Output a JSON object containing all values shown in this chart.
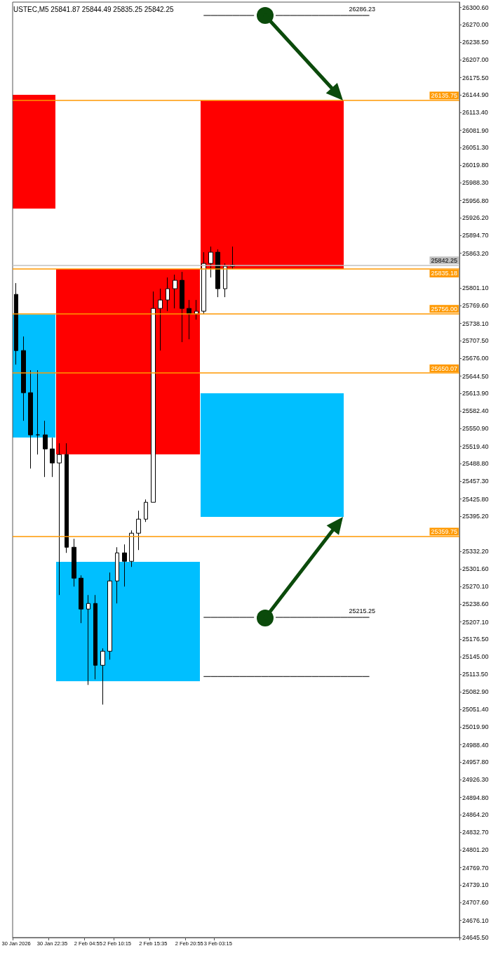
{
  "chart_data": {
    "type": "candlestick",
    "title": "USTEC,M5 25841.87 25844.49 25835.25 25842.25",
    "categories": [
      "30 Jan 2026",
      null,
      null,
      null,
      null,
      "30 Jan 22:35",
      null,
      null,
      null,
      null,
      "2 Feb 04:55",
      null,
      null,
      null,
      "2 Feb 10:15",
      null,
      null,
      null,
      null,
      "2 Feb 15:35",
      null,
      null,
      null,
      null,
      "2 Feb 20:55",
      null,
      null,
      null,
      "3 Feb 03:15",
      null,
      null,
      null,
      null,
      null,
      null,
      null,
      null,
      null,
      null,
      null,
      null,
      null,
      null,
      null,
      null,
      null,
      null,
      null,
      null,
      null,
      null,
      null,
      null,
      null,
      null,
      null,
      null,
      null,
      null,
      null,
      null,
      null
    ],
    "series": [
      {
        "type": "line",
        "color": "#000000",
        "values": [
          null,
          null,
          null,
          null,
          null,
          null,
          null,
          null,
          null,
          null,
          null,
          null,
          null,
          null,
          null,
          null,
          null,
          null,
          null,
          null,
          null,
          null,
          null,
          null,
          null,
          null,
          26286.23,
          26286.23,
          26286.23,
          26286.23,
          26286.23,
          26286.23,
          26286.23,
          26286.23,
          null,
          null,
          26286.23,
          26286.23,
          26286.23,
          26286.23,
          26286.23,
          26286.23,
          26286.23,
          26286.23,
          26286.23,
          26286.23,
          26286.23,
          26286.23,
          26286.23,
          26286.23,
          null,
          null,
          null,
          null,
          null,
          null,
          null,
          null,
          null,
          null,
          null,
          null
        ],
        "value_labels": [
          null,
          null,
          null,
          null,
          null,
          null,
          null,
          null,
          null,
          null,
          null,
          null,
          null,
          null,
          null,
          null,
          null,
          null,
          null,
          null,
          null,
          null,
          null,
          null,
          null,
          null,
          null,
          null,
          null,
          null,
          null,
          null,
          null,
          null,
          null,
          null,
          null,
          null,
          null,
          null,
          null,
          null,
          null,
          null,
          null,
          null,
          null,
          null,
          "26286.23",
          null,
          null,
          null,
          null,
          null,
          null,
          null,
          null,
          null,
          null,
          null,
          null,
          null
        ]
      },
      {
        "type": "line",
        "color": "#000000",
        "values": [
          null,
          null,
          null,
          null,
          null,
          null,
          null,
          null,
          null,
          null,
          null,
          null,
          null,
          null,
          null,
          null,
          null,
          null,
          null,
          null,
          null,
          null,
          null,
          null,
          null,
          null,
          25215.25,
          25215.25,
          25215.25,
          25215.25,
          25215.25,
          25215.25,
          25215.25,
          25215.25,
          null,
          null,
          25215.25,
          25215.25,
          25215.25,
          25215.25,
          25215.25,
          25215.25,
          25215.25,
          25215.25,
          25215.25,
          25215.25,
          25215.25,
          25215.25,
          25215.25,
          25215.25,
          null,
          null,
          null,
          null,
          null,
          null,
          null,
          null,
          null,
          null,
          null,
          null
        ],
        "value_labels": [
          null,
          null,
          null,
          null,
          null,
          null,
          null,
          null,
          null,
          null,
          null,
          null,
          null,
          null,
          null,
          null,
          null,
          null,
          null,
          null,
          null,
          null,
          null,
          null,
          null,
          null,
          null,
          null,
          null,
          null,
          null,
          null,
          null,
          null,
          null,
          null,
          null,
          null,
          null,
          null,
          null,
          null,
          null,
          null,
          null,
          null,
          null,
          null,
          "25215.25",
          null,
          null,
          null,
          null,
          null,
          null,
          null,
          null,
          null,
          null,
          null,
          null,
          null
        ]
      },
      {
        "type": "line",
        "color": "#000000",
        "values": [
          null,
          null,
          null,
          null,
          null,
          null,
          null,
          null,
          null,
          null,
          null,
          null,
          null,
          null,
          null,
          null,
          null,
          null,
          null,
          null,
          null,
          null,
          null,
          null,
          null,
          null,
          25110,
          25110,
          25110,
          25110,
          25110,
          25110,
          25110,
          25110,
          25110,
          25110,
          25110,
          25110,
          25110,
          25110,
          25110,
          25110,
          25110,
          25110,
          25110,
          25110,
          25110,
          25110,
          25110,
          25110,
          null,
          null,
          null,
          null,
          null,
          null,
          null,
          null,
          null,
          null,
          null,
          null
        ]
      }
    ],
    "color": "#000000",
    "ohlc": [
      [
        25790,
        25810,
        25665,
        25690
      ],
      [
        25690,
        25715,
        25565,
        25615
      ],
      [
        25615,
        25655,
        25480,
        25540
      ],
      [
        25540,
        25655,
        25505,
        25540
      ],
      [
        25540,
        25565,
        25465,
        25515
      ],
      [
        25515,
        25535,
        25465,
        25490
      ],
      [
        25490,
        25525,
        25255,
        25505
      ],
      [
        25505,
        25525,
        25330,
        25340
      ],
      [
        25340,
        25355,
        25270,
        25285
      ],
      [
        25285,
        25290,
        25205,
        25230
      ],
      [
        25230,
        25255,
        25095,
        25240
      ],
      [
        25240,
        25255,
        25105,
        25130
      ],
      [
        25130,
        25160,
        25060,
        25155
      ],
      [
        25155,
        25295,
        25140,
        25280
      ],
      [
        25280,
        25340,
        25240,
        25330
      ],
      [
        25330,
        25345,
        25270,
        25315
      ],
      [
        25315,
        25370,
        25305,
        25365
      ],
      [
        25365,
        25405,
        25335,
        25390
      ],
      [
        25390,
        25425,
        25385,
        25420
      ],
      [
        25420,
        25795,
        25420,
        25765
      ],
      [
        25765,
        25800,
        25690,
        25780
      ],
      [
        25780,
        25820,
        25760,
        25800
      ],
      [
        25800,
        25825,
        25765,
        25815
      ],
      [
        25815,
        25830,
        25705,
        25765
      ],
      [
        25765,
        25780,
        25710,
        25755
      ],
      [
        25755,
        25780,
        25745,
        25760
      ],
      [
        25760,
        25865,
        25755,
        25845
      ],
      [
        25845,
        25875,
        25820,
        25865
      ],
      [
        25865,
        25870,
        25785,
        25800
      ],
      [
        25800,
        25845,
        25785,
        25840
      ],
      [
        25840,
        25875,
        25835,
        25842.25
      ],
      null,
      null,
      null,
      null,
      null,
      null,
      null,
      null,
      null,
      null,
      null,
      null,
      null,
      null,
      null,
      null,
      null,
      null,
      null,
      null,
      null,
      null,
      null,
      null,
      null,
      null,
      null,
      null,
      null,
      null,
      null
    ],
    "ylim": [
      24645.5,
      26310
    ],
    "yticks": [
      {
        "value": 26300.6,
        "label": "26300.60"
      },
      {
        "value": 26270,
        "label": "26270.00"
      },
      {
        "value": 26238.5,
        "label": "26238.50"
      },
      {
        "value": 26207,
        "label": "26207.00"
      },
      {
        "value": 26175.5,
        "label": "26175.50"
      },
      {
        "value": 26144.9,
        "label": "26144.90"
      },
      {
        "value": 26113.4,
        "label": "26113.40"
      },
      {
        "value": 26081.9,
        "label": "26081.90"
      },
      {
        "value": 26051.3,
        "label": "26051.30"
      },
      {
        "value": 26019.8,
        "label": "26019.80"
      },
      {
        "value": 25988.3,
        "label": "25988.30"
      },
      {
        "value": 25956.8,
        "label": "25956.80"
      },
      {
        "value": 25926.2,
        "label": "25926.20"
      },
      {
        "value": 25894.7,
        "label": "25894.70"
      },
      {
        "value": 25863.2,
        "label": "25863.20"
      },
      {
        "value": 25801.1,
        "label": "25801.10"
      },
      {
        "value": 25769.6,
        "label": "25769.60"
      },
      {
        "value": 25738.1,
        "label": "25738.10"
      },
      {
        "value": 25707.5,
        "label": "25707.50"
      },
      {
        "value": 25676,
        "label": "25676.00"
      },
      {
        "value": 25644.5,
        "label": "25644.50"
      },
      {
        "value": 25613.9,
        "label": "25613.90"
      },
      {
        "value": 25582.4,
        "label": "25582.40"
      },
      {
        "value": 25550.9,
        "label": "25550.90"
      },
      {
        "value": 25519.4,
        "label": "25519.40"
      },
      {
        "value": 25488.8,
        "label": "25488.80"
      },
      {
        "value": 25457.3,
        "label": "25457.30"
      },
      {
        "value": 25425.8,
        "label": "25425.80"
      },
      {
        "value": 25395.2,
        "label": "25395.20"
      },
      {
        "value": 25332.2,
        "label": "25332.20"
      },
      {
        "value": 25301.6,
        "label": "25301.60"
      },
      {
        "value": 25270.1,
        "label": "25270.10"
      },
      {
        "value": 25238.6,
        "label": "25238.60"
      },
      {
        "value": 25207.1,
        "label": "25207.10"
      },
      {
        "value": 25176.5,
        "label": "25176.50"
      },
      {
        "value": 25145,
        "label": "25145.00"
      },
      {
        "value": 25113.5,
        "label": "25113.50"
      },
      {
        "value": 25082.9,
        "label": "25082.90"
      },
      {
        "value": 25051.4,
        "label": "25051.40"
      },
      {
        "value": 25019.9,
        "label": "25019.90"
      },
      {
        "value": 24988.4,
        "label": "24988.40"
      },
      {
        "value": 24957.8,
        "label": "24957.80"
      },
      {
        "value": 24926.3,
        "label": "24926.30"
      },
      {
        "value": 24894.8,
        "label": "24894.80"
      },
      {
        "value": 24864.2,
        "label": "24864.20"
      },
      {
        "value": 24832.7,
        "label": "24832.70"
      },
      {
        "value": 24801.2,
        "label": "24801.20"
      },
      {
        "value": 24769.7,
        "label": "24769.70"
      },
      {
        "value": 24739.1,
        "label": "24739.10"
      },
      {
        "value": 24707.6,
        "label": "24707.60"
      },
      {
        "value": 24676.1,
        "label": "24676.10"
      },
      {
        "value": 24645.5,
        "label": "24645.50"
      }
    ],
    "ref_lines": [
      {
        "axis": "y",
        "value": 26135.75,
        "label": "26135.75",
        "color": "#ff9900"
      },
      {
        "axis": "y",
        "value": 25842.25,
        "label": "25842.25",
        "color": "#c0c0c0"
      },
      {
        "axis": "y",
        "value": 25835.18,
        "label": "25835.18",
        "color": "#ff9900"
      },
      {
        "axis": "y",
        "value": 25756.0,
        "label": "25756.00",
        "color": "#ff9900"
      },
      {
        "axis": "y",
        "value": 25650.07,
        "label": "25650.07",
        "color": "#ff9900"
      },
      {
        "axis": "y",
        "value": 25359.75,
        "label": "25359.75",
        "color": "#ff9900"
      }
    ],
    "grid": false
  }
}
